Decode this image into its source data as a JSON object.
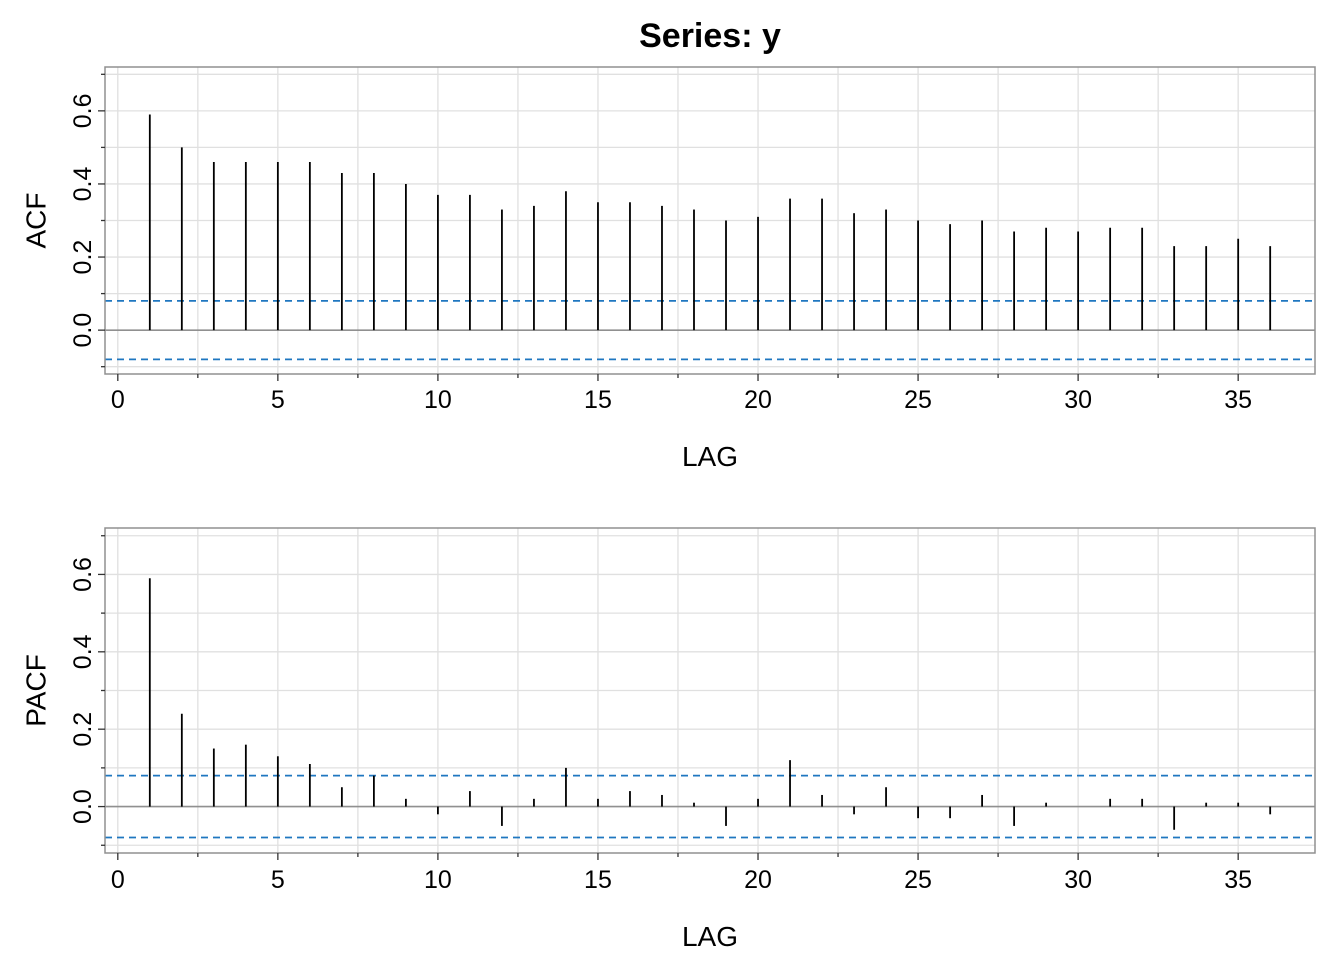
{
  "title": "Series:  y",
  "chart_data": [
    {
      "type": "bar",
      "ylabel": "ACF",
      "xlabel": "LAG",
      "xlim": [
        -0.4,
        37.4
      ],
      "ylim": [
        -0.12,
        0.72
      ],
      "x_ticks": [
        0,
        5,
        10,
        15,
        20,
        25,
        30,
        35
      ],
      "y_ticks": [
        0.0,
        0.2,
        0.4,
        0.6
      ],
      "y_tick_labels": [
        "0.0",
        "0.2",
        "0.4",
        "0.6"
      ],
      "confidence_bound": 0.08,
      "lags": [
        1,
        2,
        3,
        4,
        5,
        6,
        7,
        8,
        9,
        10,
        11,
        12,
        13,
        14,
        15,
        16,
        17,
        18,
        19,
        20,
        21,
        22,
        23,
        24,
        25,
        26,
        27,
        28,
        29,
        30,
        31,
        32,
        33,
        34,
        35,
        36
      ],
      "values": [
        0.59,
        0.5,
        0.46,
        0.46,
        0.46,
        0.46,
        0.43,
        0.43,
        0.4,
        0.37,
        0.37,
        0.33,
        0.34,
        0.38,
        0.35,
        0.35,
        0.34,
        0.33,
        0.3,
        0.31,
        0.36,
        0.36,
        0.32,
        0.33,
        0.3,
        0.29,
        0.3,
        0.27,
        0.28,
        0.27,
        0.28,
        0.28,
        0.23,
        0.23,
        0.25,
        0.23
      ],
      "grid": true,
      "colors": {
        "bars": "#000000",
        "bounds": "#1f77c0",
        "grid": "#e0e0e0",
        "zero": "#909090",
        "frame": "#909090"
      }
    },
    {
      "type": "bar",
      "ylabel": "PACF",
      "xlabel": "LAG",
      "xlim": [
        -0.4,
        37.4
      ],
      "ylim": [
        -0.12,
        0.72
      ],
      "x_ticks": [
        0,
        5,
        10,
        15,
        20,
        25,
        30,
        35
      ],
      "y_ticks": [
        0.0,
        0.2,
        0.4,
        0.6
      ],
      "y_tick_labels": [
        "0.0",
        "0.2",
        "0.4",
        "0.6"
      ],
      "confidence_bound": 0.08,
      "lags": [
        1,
        2,
        3,
        4,
        5,
        6,
        7,
        8,
        9,
        10,
        11,
        12,
        13,
        14,
        15,
        16,
        17,
        18,
        19,
        20,
        21,
        22,
        23,
        24,
        25,
        26,
        27,
        28,
        29,
        30,
        31,
        32,
        33,
        34,
        35,
        36
      ],
      "values": [
        0.59,
        0.24,
        0.15,
        0.16,
        0.13,
        0.11,
        0.05,
        0.08,
        0.02,
        -0.02,
        0.04,
        -0.05,
        0.02,
        0.1,
        0.02,
        0.04,
        0.03,
        0.01,
        -0.05,
        0.02,
        0.12,
        0.03,
        -0.02,
        0.05,
        -0.03,
        -0.03,
        0.03,
        -0.05,
        0.01,
        0.0,
        0.02,
        0.02,
        -0.06,
        0.01,
        0.01,
        -0.02
      ],
      "grid": true,
      "colors": {
        "bars": "#000000",
        "bounds": "#1f77c0",
        "grid": "#e0e0e0",
        "zero": "#909090",
        "frame": "#909090"
      }
    }
  ]
}
